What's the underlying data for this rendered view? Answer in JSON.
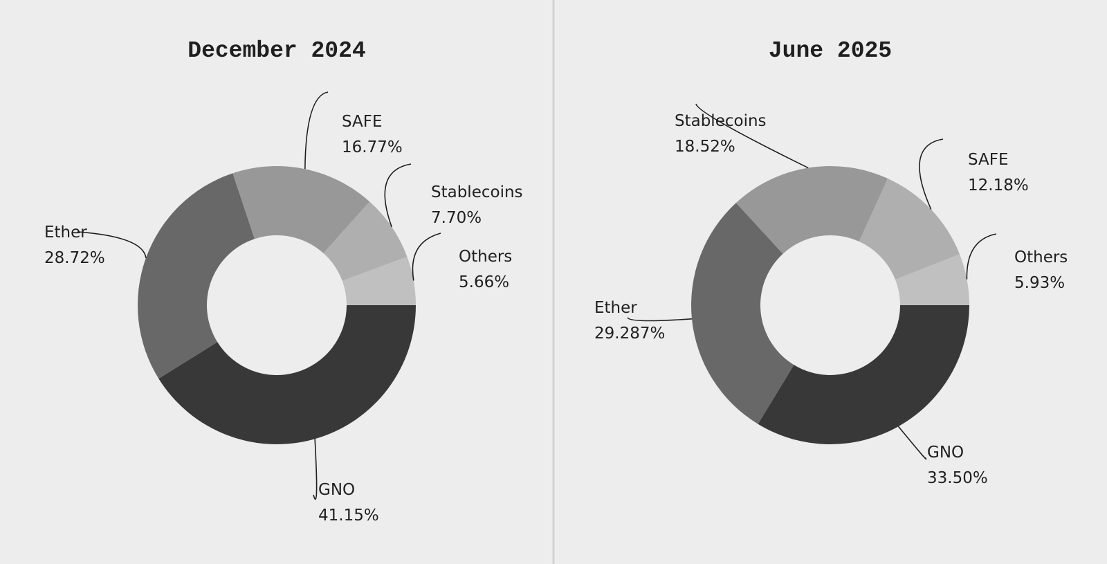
{
  "chart_data": [
    {
      "type": "pie",
      "variant": "donut",
      "title": "December 2024",
      "slices": [
        {
          "label": "GNO",
          "value_text": "41.15%",
          "value": 41.15,
          "color": "#383838"
        },
        {
          "label": "Ether",
          "value_text": "28.72%",
          "value": 28.72,
          "color": "#686868"
        },
        {
          "label": "SAFE",
          "value_text": "16.77%",
          "value": 16.77,
          "color": "#989898"
        },
        {
          "label": "Stablecoins",
          "value_text": "7.70%",
          "value": 7.7,
          "color": "#afafaf"
        },
        {
          "label": "Others",
          "value_text": "5.66%",
          "value": 5.66,
          "color": "#c0c0c0"
        }
      ]
    },
    {
      "type": "pie",
      "variant": "donut",
      "title": "June 2025",
      "slices": [
        {
          "label": "GNO",
          "value_text": "33.50%",
          "value": 33.5,
          "color": "#383838"
        },
        {
          "label": "Ether",
          "value_text": "29.287%",
          "value": 29.287,
          "color": "#686868"
        },
        {
          "label": "Stablecoins",
          "value_text": "18.52%",
          "value": 18.52,
          "color": "#989898"
        },
        {
          "label": "SAFE",
          "value_text": "12.18%",
          "value": 12.18,
          "color": "#afafaf"
        },
        {
          "label": "Others",
          "value_text": "5.93%",
          "value": 5.93,
          "color": "#c0c0c0"
        }
      ]
    }
  ]
}
